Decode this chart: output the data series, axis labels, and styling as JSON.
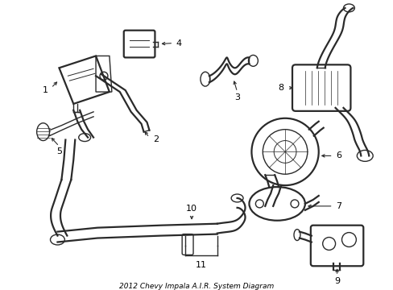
{
  "title": "2012 Chevy Impala A.I.R. System Diagram",
  "background": "#ffffff",
  "line_color": "#2a2a2a",
  "lw_main": 1.6,
  "lw_thin": 1.0,
  "lw_leader": 0.8,
  "figsize": [
    4.89,
    3.6
  ],
  "dpi": 100
}
